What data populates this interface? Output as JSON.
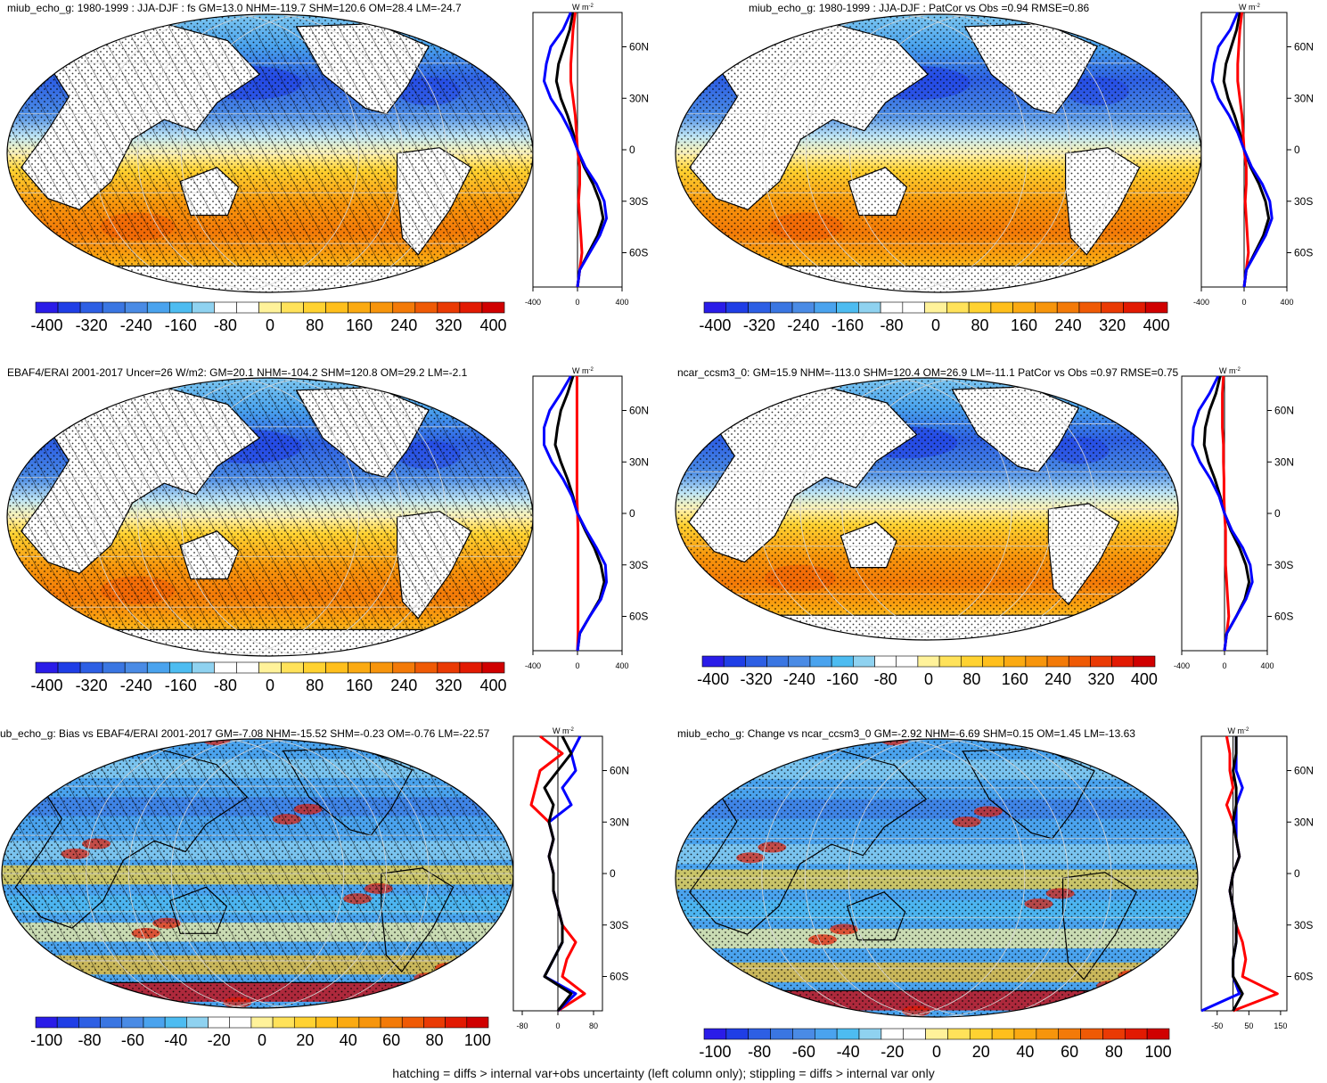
{
  "colorbars": {
    "absolute": {
      "labels": [
        "-400",
        "-320",
        "-240",
        "-160",
        "-80",
        "0",
        "80",
        "160",
        "240",
        "320",
        "400"
      ],
      "colors": [
        "#2a1ce8",
        "#1f3ee6",
        "#2d5fe4",
        "#3a76e2",
        "#4a8be5",
        "#4aa3ee",
        "#4dbcf1",
        "#8fd2f0",
        "#ffffff",
        "#ffffff",
        "#fff29a",
        "#ffe25a",
        "#ffd231",
        "#ffbf1c",
        "#fbaa12",
        "#f7950c",
        "#f37a08",
        "#ef5a05",
        "#ea3a04",
        "#e21a02",
        "#d00000"
      ]
    },
    "difference": {
      "labels": [
        "-100",
        "-80",
        "-60",
        "-40",
        "-20",
        "0",
        "20",
        "40",
        "60",
        "80",
        "100"
      ],
      "colors": [
        "#2a1ce8",
        "#1f3ee6",
        "#2d5fe4",
        "#3a76e2",
        "#4a8be5",
        "#4aa3ee",
        "#4dbcf1",
        "#8fd2f0",
        "#ffffff",
        "#ffffff",
        "#fff29a",
        "#ffe25a",
        "#ffd231",
        "#ffbf1c",
        "#fbaa12",
        "#f7950c",
        "#f37a08",
        "#ef5a05",
        "#ea3a04",
        "#e21a02",
        "#d00000"
      ]
    }
  },
  "zonal_axis": {
    "units": "W m",
    "units_exp": "-2",
    "lat_labels": [
      "60N",
      "30N",
      "0",
      "30S",
      "60S"
    ],
    "lat_values": [
      60,
      30,
      0,
      -30,
      -60
    ],
    "lat_range": [
      -80,
      80
    ]
  },
  "chart_data": [
    {
      "type": "heatmap",
      "title": "miub_echo_g: 1980-1999 : JJA-DJF : fs GM=13.0 NHM=-119.7 SHM=120.6 OM=28.4 LM=-24.7",
      "colorbar": "absolute",
      "hatching": true,
      "stippling": true,
      "zonal_profile": {
        "type": "line",
        "xlim": [
          -400,
          400
        ],
        "xticks": [
          "-400",
          "0",
          "400"
        ],
        "lat": [
          80,
          70,
          60,
          50,
          40,
          30,
          20,
          10,
          0,
          -10,
          -20,
          -30,
          -40,
          -50,
          -60,
          -70,
          -80
        ],
        "series": [
          {
            "color": "#000000",
            "values": [
              -40,
              -70,
              -120,
              -170,
              -190,
              -150,
              -90,
              -40,
              0,
              60,
              140,
              200,
              230,
              180,
              100,
              20,
              0
            ]
          },
          {
            "color": "#ff0000",
            "values": [
              -20,
              -40,
              -50,
              -60,
              -60,
              -40,
              -20,
              -10,
              0,
              20,
              20,
              10,
              20,
              30,
              40,
              20,
              0
            ]
          },
          {
            "color": "#0000ff",
            "values": [
              -60,
              -130,
              -240,
              -280,
              -300,
              -240,
              -140,
              -60,
              0,
              70,
              170,
              240,
              260,
              200,
              110,
              20,
              0
            ]
          }
        ]
      }
    },
    {
      "type": "heatmap",
      "title": "miub_echo_g: 1980-1999 : JJA-DJF : PatCor vs Obs =0.94 RMSE=0.86",
      "colorbar": "absolute",
      "hatching": false,
      "stippling": true,
      "zonal_profile": {
        "type": "line",
        "xlim": [
          -400,
          400
        ],
        "xticks": [
          "-400",
          "0",
          "400"
        ],
        "lat": [
          80,
          70,
          60,
          50,
          40,
          30,
          20,
          10,
          0,
          -10,
          -20,
          -30,
          -40,
          -50,
          -60,
          -70,
          -80
        ],
        "series": [
          {
            "color": "#000000",
            "values": [
              -40,
              -70,
              -120,
              -170,
              -190,
              -150,
              -90,
              -40,
              0,
              60,
              140,
              200,
              230,
              180,
              100,
              20,
              0
            ]
          },
          {
            "color": "#ff0000",
            "values": [
              -20,
              -40,
              -50,
              -60,
              -60,
              -40,
              -20,
              -10,
              0,
              20,
              20,
              10,
              20,
              30,
              40,
              20,
              0
            ]
          },
          {
            "color": "#0000ff",
            "values": [
              -60,
              -130,
              -240,
              -280,
              -300,
              -240,
              -140,
              -60,
              0,
              70,
              170,
              240,
              260,
              200,
              110,
              20,
              0
            ]
          }
        ]
      }
    },
    {
      "type": "heatmap",
      "title": "EBAF4/ERAI 2001-2017 Uncer=26 W/m2: GM=20.1 NHM=-104.2 SHM=120.8 OM=29.2 LM=-2.1",
      "colorbar": "absolute",
      "hatching": true,
      "stippling": true,
      "zonal_profile": {
        "type": "line",
        "xlim": [
          -400,
          400
        ],
        "xticks": [
          "-400",
          "0",
          "400"
        ],
        "lat": [
          80,
          70,
          60,
          50,
          40,
          30,
          20,
          10,
          0,
          -10,
          -20,
          -30,
          -40,
          -50,
          -60,
          -70,
          -80
        ],
        "series": [
          {
            "color": "#000000",
            "values": [
              -40,
              -90,
              -150,
              -180,
              -200,
              -150,
              -90,
              -40,
              0,
              70,
              150,
              210,
              240,
              200,
              110,
              20,
              0
            ]
          },
          {
            "color": "#ff0000",
            "values": [
              -5,
              -5,
              -5,
              -5,
              -5,
              -5,
              -5,
              -5,
              0,
              5,
              5,
              5,
              5,
              5,
              5,
              5,
              0
            ]
          },
          {
            "color": "#0000ff",
            "values": [
              -60,
              -150,
              -250,
              -300,
              -300,
              -230,
              -130,
              -50,
              0,
              80,
              170,
              250,
              260,
              210,
              110,
              20,
              0
            ]
          }
        ]
      }
    },
    {
      "type": "heatmap",
      "title": "ncar_ccsm3_0: GM=15.9 NHM=-113.0 SHM=120.4 OM=26.9 LM=-11.1 PatCor vs Obs =0.97 RMSE=0.75",
      "colorbar": "absolute",
      "hatching": false,
      "stippling": true,
      "zonal_profile": {
        "type": "line",
        "xlim": [
          -400,
          400
        ],
        "xticks": [
          "-400",
          "0",
          "400"
        ],
        "lat": [
          80,
          70,
          60,
          50,
          40,
          30,
          20,
          10,
          0,
          -10,
          -20,
          -30,
          -40,
          -50,
          -60,
          -70,
          -80
        ],
        "series": [
          {
            "color": "#000000",
            "values": [
              -40,
              -80,
              -140,
              -180,
              -190,
              -150,
              -90,
              -40,
              0,
              60,
              140,
              200,
              230,
              190,
              110,
              20,
              0
            ]
          },
          {
            "color": "#ff0000",
            "values": [
              -10,
              -20,
              -20,
              -20,
              -10,
              -10,
              -5,
              -5,
              0,
              10,
              10,
              10,
              20,
              30,
              40,
              20,
              0
            ]
          },
          {
            "color": "#0000ff",
            "values": [
              -60,
              -140,
              -240,
              -290,
              -300,
              -230,
              -130,
              -50,
              0,
              70,
              170,
              240,
              260,
              200,
              110,
              20,
              0
            ]
          }
        ]
      }
    },
    {
      "type": "heatmap",
      "title": "ub_echo_g: Bias vs EBAF4/ERAI 2001-2017 GM=-7.08 NHM=-15.52 SHM=-0.23 OM=-0.76 LM=-22.57",
      "colorbar": "difference",
      "hatching": true,
      "stippling": true,
      "zonal_profile": {
        "type": "line",
        "xlim": [
          -100,
          100
        ],
        "xticks": [
          "-80",
          "0",
          "80"
        ],
        "lat": [
          80,
          70,
          60,
          50,
          40,
          30,
          20,
          10,
          0,
          -10,
          -20,
          -30,
          -40,
          -50,
          -60,
          -70,
          -80
        ],
        "series": [
          {
            "color": "#ff0000",
            "values": [
              -40,
              10,
              -40,
              -50,
              -60,
              -20,
              -10,
              -20,
              -10,
              -10,
              0,
              10,
              40,
              20,
              10,
              60,
              0
            ]
          },
          {
            "color": "#0000ff",
            "values": [
              50,
              30,
              40,
              10,
              30,
              -20,
              -10,
              -20,
              -10,
              -10,
              0,
              10,
              10,
              -10,
              -30,
              40,
              0
            ]
          },
          {
            "color": "#000000",
            "values": [
              10,
              30,
              0,
              -30,
              -10,
              -20,
              -10,
              -20,
              -10,
              -10,
              0,
              10,
              10,
              -10,
              -30,
              30,
              0
            ]
          }
        ]
      }
    },
    {
      "type": "heatmap",
      "title": "miub_echo_g: Change vs ncar_ccsm3_0 GM=-2.92 NHM=-6.69 SHM=0.15 OM=1.45 LM=-13.63",
      "colorbar": "difference",
      "hatching": false,
      "stippling": true,
      "zonal_profile": {
        "type": "line",
        "xlim": [
          -100,
          170
        ],
        "xticks": [
          "-50",
          "50",
          "150"
        ],
        "lat": [
          80,
          70,
          60,
          50,
          40,
          30,
          20,
          10,
          0,
          -10,
          -20,
          -30,
          -40,
          -50,
          -60,
          -70,
          -80
        ],
        "series": [
          {
            "color": "#ff0000",
            "values": [
              -20,
              -10,
              -10,
              0,
              -20,
              0,
              10,
              20,
              0,
              -10,
              0,
              10,
              30,
              40,
              30,
              140,
              0
            ]
          },
          {
            "color": "#0000ff",
            "values": [
              10,
              10,
              10,
              30,
              10,
              10,
              10,
              20,
              0,
              -10,
              0,
              10,
              10,
              0,
              0,
              20,
              -100
            ]
          },
          {
            "color": "#000000",
            "values": [
              10,
              10,
              0,
              10,
              10,
              0,
              10,
              20,
              0,
              -10,
              0,
              10,
              10,
              0,
              0,
              30,
              0
            ]
          }
        ]
      }
    }
  ],
  "footnote": "hatching = diffs > internal var+obs uncertainty (left column only); stippling = diffs > internal var only"
}
